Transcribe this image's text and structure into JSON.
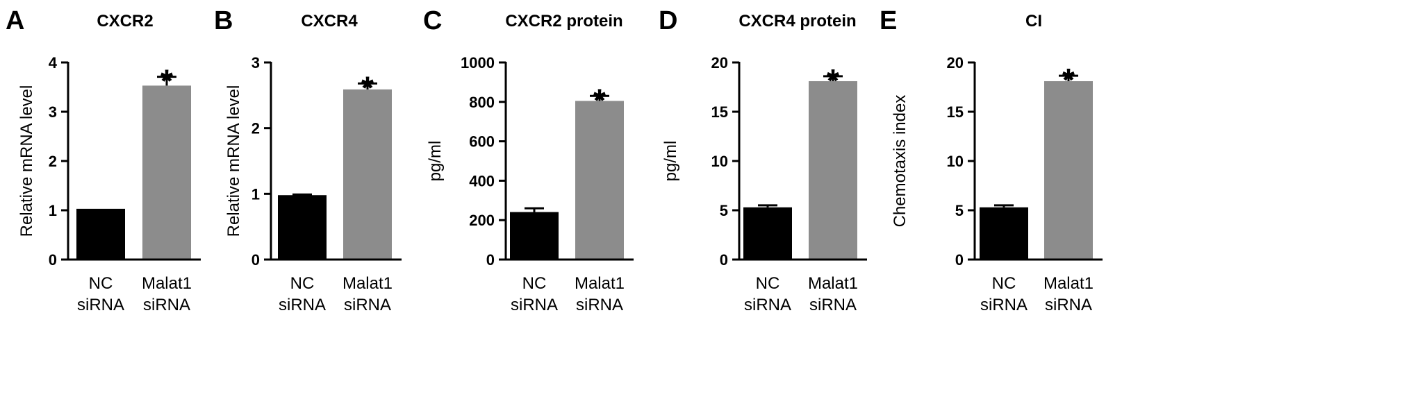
{
  "chart_data": [
    {
      "panel": "A",
      "type": "bar",
      "title": "CXCR2",
      "ylabel": "Relative mRNA level",
      "xlabel": "",
      "categories": [
        [
          "NC",
          "siRNA"
        ],
        [
          "Malat1",
          "siRNA"
        ]
      ],
      "values": [
        1.03,
        3.53
      ],
      "errors": [
        0.0,
        0.18
      ],
      "significance": [
        "",
        "*"
      ],
      "bar_colors": [
        "#000000",
        "#8c8c8c"
      ],
      "ylim": [
        0,
        4
      ],
      "yticks": [
        0,
        1,
        2,
        3,
        4
      ],
      "grid": false
    },
    {
      "panel": "B",
      "type": "bar",
      "title": "CXCR4",
      "ylabel": "Relative mRNA level",
      "xlabel": "",
      "categories": [
        [
          "NC",
          "siRNA"
        ],
        [
          "Malat1",
          "siRNA"
        ]
      ],
      "values": [
        0.98,
        2.59
      ],
      "errors": [
        0.01,
        0.09
      ],
      "significance": [
        "",
        "*"
      ],
      "bar_colors": [
        "#000000",
        "#8c8c8c"
      ],
      "ylim": [
        0,
        3
      ],
      "yticks": [
        0,
        1,
        2,
        3
      ],
      "grid": false
    },
    {
      "panel": "C",
      "type": "bar",
      "title": "CXCR2 protein",
      "ylabel": "pg/ml",
      "xlabel": "",
      "categories": [
        [
          "NC",
          "siRNA"
        ],
        [
          "Malat1",
          "siRNA"
        ]
      ],
      "values": [
        241,
        805
      ],
      "errors": [
        19,
        25
      ],
      "significance": [
        "",
        "*"
      ],
      "bar_colors": [
        "#000000",
        "#8c8c8c"
      ],
      "ylim": [
        0,
        1000
      ],
      "yticks": [
        0,
        200,
        400,
        600,
        800,
        1000
      ],
      "grid": false
    },
    {
      "panel": "D",
      "type": "bar",
      "title": "CXCR4 protein",
      "ylabel": "pg/ml",
      "xlabel": "",
      "categories": [
        [
          "NC",
          "siRNA"
        ],
        [
          "Malat1",
          "siRNA"
        ]
      ],
      "values": [
        5.3,
        18.1
      ],
      "errors": [
        0.2,
        0.5
      ],
      "significance": [
        "",
        "*"
      ],
      "bar_colors": [
        "#000000",
        "#8c8c8c"
      ],
      "ylim": [
        0,
        20
      ],
      "yticks": [
        0,
        5,
        10,
        15,
        20
      ],
      "grid": false
    },
    {
      "panel": "E",
      "type": "bar",
      "title": "CI",
      "ylabel": "Chemotaxis index",
      "xlabel": "",
      "categories": [
        [
          "NC",
          "siRNA"
        ],
        [
          "Malat1",
          "siRNA"
        ]
      ],
      "values": [
        5.3,
        18.1
      ],
      "errors": [
        0.2,
        0.55
      ],
      "significance": [
        "",
        "*"
      ],
      "bar_colors": [
        "#000000",
        "#8c8c8c"
      ],
      "ylim": [
        0,
        20
      ],
      "yticks": [
        0,
        5,
        10,
        15,
        20
      ],
      "grid": false
    }
  ]
}
